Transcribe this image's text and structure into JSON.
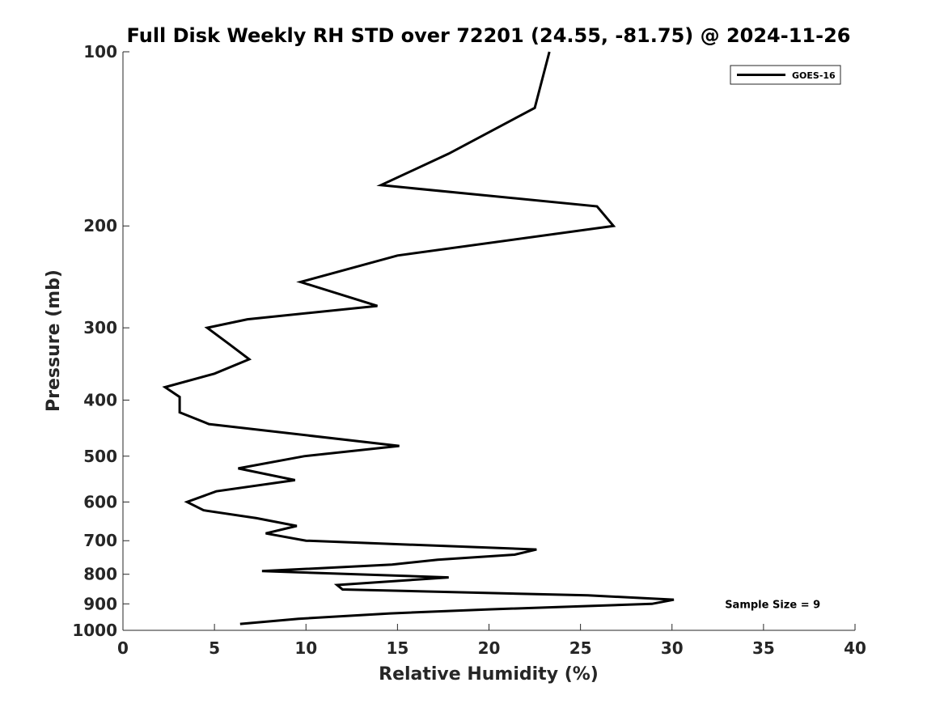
{
  "chart_data": {
    "type": "line",
    "title": "Full Disk Weekly RH STD over 72201 (24.55, -81.75) @ 2024-11-26",
    "xlabel": "Relative Humidity (%)",
    "ylabel": "Pressure (mb)",
    "xlim": [
      0,
      40
    ],
    "ylim": [
      100,
      1000
    ],
    "yscale": "log-reversed",
    "xticks": [
      0,
      5,
      10,
      15,
      20,
      25,
      30,
      35,
      40
    ],
    "yticks": [
      100,
      200,
      300,
      400,
      500,
      600,
      700,
      800,
      900,
      1000
    ],
    "grid": false,
    "legend_position": "top-right",
    "series": [
      {
        "name": "GOES-16",
        "color": "#000000",
        "points": [
          [
            23.3,
            100
          ],
          [
            22.5,
            125
          ],
          [
            17.8,
            150
          ],
          [
            14.1,
            170
          ],
          [
            25.9,
            185
          ],
          [
            26.8,
            200
          ],
          [
            15.0,
            225
          ],
          [
            9.7,
            250
          ],
          [
            13.9,
            275
          ],
          [
            6.8,
            290
          ],
          [
            4.6,
            300
          ],
          [
            5.8,
            320
          ],
          [
            6.9,
            340
          ],
          [
            5.0,
            360
          ],
          [
            2.3,
            380
          ],
          [
            3.1,
            395
          ],
          [
            3.1,
            420
          ],
          [
            4.7,
            440
          ],
          [
            15.1,
            480
          ],
          [
            9.9,
            500
          ],
          [
            6.3,
            525
          ],
          [
            9.4,
            550
          ],
          [
            5.1,
            575
          ],
          [
            3.5,
            600
          ],
          [
            4.4,
            620
          ],
          [
            7.3,
            640
          ],
          [
            9.5,
            660
          ],
          [
            7.8,
            680
          ],
          [
            10.0,
            700
          ],
          [
            22.6,
            725
          ],
          [
            21.4,
            740
          ],
          [
            17.2,
            755
          ],
          [
            14.7,
            770
          ],
          [
            7.6,
            790
          ],
          [
            17.8,
            810
          ],
          [
            11.7,
            835
          ],
          [
            12.0,
            850
          ],
          [
            25.4,
            870
          ],
          [
            30.1,
            885
          ],
          [
            28.9,
            900
          ],
          [
            20.0,
            920
          ],
          [
            14.6,
            935
          ],
          [
            9.6,
            955
          ],
          [
            6.4,
            975
          ]
        ]
      }
    ],
    "annotations": [
      {
        "text": "Sample Size = 9",
        "x": 35.5,
        "y": 900
      }
    ]
  }
}
